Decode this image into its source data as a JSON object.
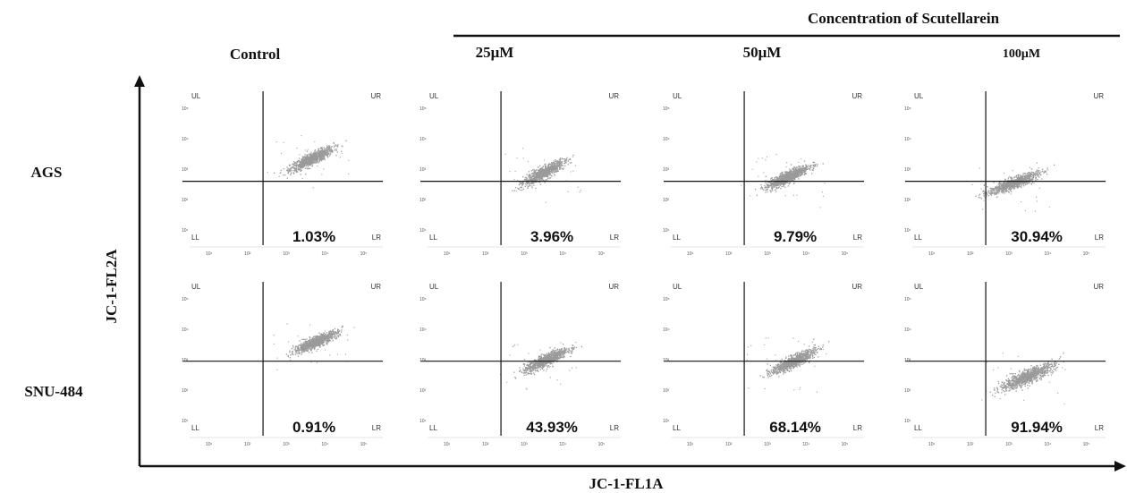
{
  "figure": {
    "top_title": "Concentration of Scutellarein",
    "columns": [
      "Control",
      "25μM",
      "50μM",
      "100μM"
    ],
    "rows": [
      "AGS",
      "SNU-484"
    ],
    "y_axis_label": "JC-1-FL2A",
    "x_axis_label": "JC-1-FL1A"
  },
  "chart_data": {
    "type": "scatter",
    "quadrant_labels": [
      "UL",
      "UR",
      "LL",
      "LR"
    ],
    "x_ticks": [
      "10¹",
      "10²",
      "10³",
      "10⁴",
      "10⁵"
    ],
    "y_ticks": [
      "10⁵",
      "10⁴",
      "10³",
      "10²",
      "10¹"
    ],
    "scale": "log",
    "axis_range_log10": [
      0.5,
      5.5
    ],
    "gates_log10": {
      "AGS": {
        "x": 2.4,
        "y": 2.6
      },
      "SNU-484": {
        "x": 2.4,
        "y": 2.95
      }
    },
    "panels": [
      {
        "row": "AGS",
        "column": "Control",
        "lr_percent": "1.03%",
        "cluster": {
          "cx": 3.65,
          "cy": 3.35,
          "sx": 0.28,
          "sy": 0.22
        }
      },
      {
        "row": "AGS",
        "column": "25μM",
        "lr_percent": "3.96%",
        "cluster": {
          "cx": 3.5,
          "cy": 2.9,
          "sx": 0.26,
          "sy": 0.22
        }
      },
      {
        "row": "AGS",
        "column": "50μM",
        "lr_percent": "9.79%",
        "cluster": {
          "cx": 3.5,
          "cy": 2.75,
          "sx": 0.28,
          "sy": 0.22
        }
      },
      {
        "row": "AGS",
        "column": "100μM",
        "lr_percent": "30.94%",
        "cluster": {
          "cx": 3.1,
          "cy": 2.55,
          "sx": 0.32,
          "sy": 0.2
        }
      },
      {
        "row": "SNU-484",
        "column": "Control",
        "lr_percent": "0.91%",
        "cluster": {
          "cx": 3.75,
          "cy": 3.6,
          "sx": 0.28,
          "sy": 0.2
        }
      },
      {
        "row": "SNU-484",
        "column": "25μM",
        "lr_percent": "43.93%",
        "cluster": {
          "cx": 3.55,
          "cy": 3.0,
          "sx": 0.28,
          "sy": 0.22
        }
      },
      {
        "row": "SNU-484",
        "column": "50μM",
        "lr_percent": "68.14%",
        "cluster": {
          "cx": 3.65,
          "cy": 2.95,
          "sx": 0.28,
          "sy": 0.22
        }
      },
      {
        "row": "SNU-484",
        "column": "100μM",
        "lr_percent": "91.94%",
        "cluster": {
          "cx": 3.45,
          "cy": 2.45,
          "sx": 0.35,
          "sy": 0.25
        }
      }
    ]
  }
}
